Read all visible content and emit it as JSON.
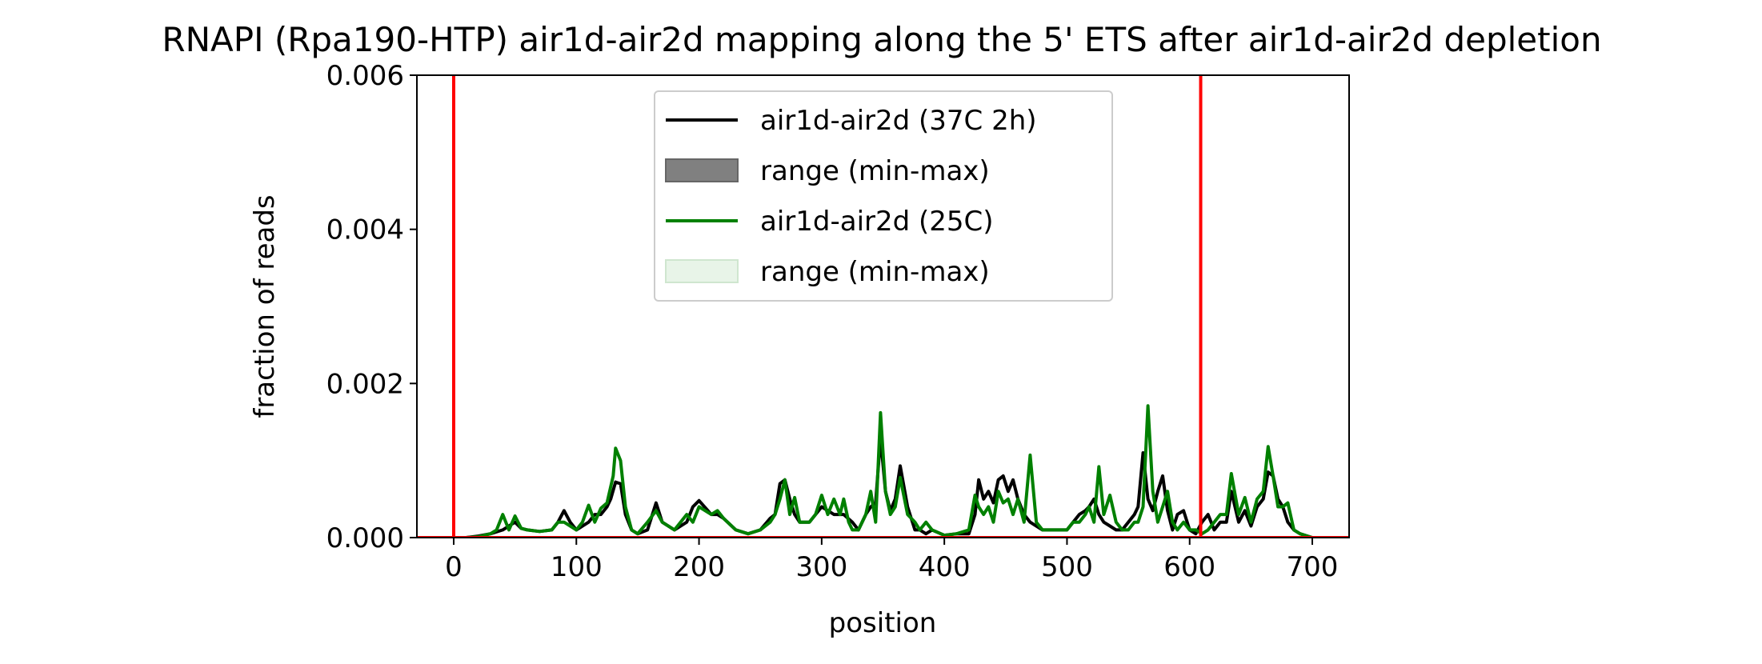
{
  "chart_data": {
    "type": "line",
    "title": "RNAPI (Rpa190-HTP) air1d-air2d mapping along the 5' ETS after air1d-air2d depletion",
    "xlabel": "position",
    "ylabel": "fraction of reads",
    "xlim": [
      -30,
      730
    ],
    "ylim": [
      0,
      0.006
    ],
    "xticks": [
      0,
      100,
      200,
      300,
      400,
      500,
      600,
      700
    ],
    "xtick_labels": [
      "0",
      "100",
      "200",
      "300",
      "400",
      "500",
      "600",
      "700"
    ],
    "yticks": [
      0.0,
      0.002,
      0.004,
      0.006
    ],
    "ytick_labels": [
      "0.000",
      "0.002",
      "0.004",
      "0.006"
    ],
    "grid": false,
    "legend_position": "top-center",
    "vlines": [
      {
        "x": 0,
        "color": "#ff0000"
      },
      {
        "x": 609,
        "color": "#ff0000"
      }
    ],
    "hline": {
      "y": 0,
      "color": "#ff0000"
    },
    "legend": [
      {
        "label": "air1d-air2d (37C 2h)",
        "kind": "line",
        "color": "#000000"
      },
      {
        "label": "range (min-max)",
        "kind": "patch",
        "color": "#808080"
      },
      {
        "label": "air1d-air2d (25C)",
        "kind": "line",
        "color": "#008000"
      },
      {
        "label": "range (min-max)",
        "kind": "patch",
        "color": "#e8f4e8"
      }
    ],
    "series": [
      {
        "name": "air1d-air2d (37C 2h)",
        "color": "#000000",
        "x": [
          0,
          10,
          20,
          30,
          40,
          45,
          50,
          55,
          60,
          70,
          80,
          85,
          90,
          95,
          100,
          110,
          115,
          120,
          125,
          128,
          132,
          136,
          140,
          145,
          150,
          158,
          165,
          170,
          180,
          190,
          195,
          200,
          210,
          215,
          220,
          230,
          240,
          250,
          258,
          262,
          266,
          270,
          274,
          278,
          282,
          290,
          295,
          300,
          305,
          310,
          318,
          325,
          330,
          336,
          340,
          344,
          348,
          352,
          356,
          360,
          364,
          370,
          376,
          380,
          385,
          390,
          400,
          410,
          420,
          425,
          428,
          432,
          436,
          440,
          444,
          448,
          452,
          456,
          460,
          465,
          470,
          480,
          490,
          500,
          505,
          510,
          515,
          518,
          522,
          526,
          530,
          535,
          540,
          545,
          550,
          555,
          558,
          562,
          566,
          570,
          574,
          578,
          582,
          586,
          590,
          595,
          600,
          605,
          610,
          615,
          620,
          625,
          630,
          634,
          640,
          645,
          650,
          655,
          660,
          664,
          668,
          672,
          676,
          680,
          685,
          690,
          700
        ],
        "y": [
          0,
          0,
          2e-05,
          5e-05,
          0.0001,
          0.00015,
          0.0002,
          0.00012,
          0.0001,
          8e-05,
          0.0001,
          0.0002,
          0.00035,
          0.0002,
          0.0001,
          0.0002,
          0.0003,
          0.0003,
          0.0004,
          0.0005,
          0.00072,
          0.0007,
          0.0003,
          0.0001,
          5e-05,
          0.0001,
          0.00045,
          0.0002,
          0.0001,
          0.0002,
          0.0004,
          0.00048,
          0.0003,
          0.0003,
          0.00025,
          0.0001,
          5e-05,
          0.0001,
          0.00025,
          0.0003,
          0.0007,
          0.00075,
          0.0005,
          0.0003,
          0.0002,
          0.0002,
          0.0003,
          0.0004,
          0.00035,
          0.0003,
          0.0003,
          0.0002,
          0.0001,
          0.0003,
          0.0004,
          0.00045,
          0.0013,
          0.0006,
          0.00035,
          0.0005,
          0.00093,
          0.0004,
          0.0001,
          0.0001,
          5e-05,
          0.0001,
          3e-05,
          5e-05,
          5e-05,
          0.0003,
          0.00075,
          0.0005,
          0.0006,
          0.00045,
          0.00075,
          0.0008,
          0.0006,
          0.00075,
          0.0005,
          0.0003,
          0.0002,
          0.0001,
          0.0001,
          0.0001,
          0.0002,
          0.0003,
          0.00035,
          0.0004,
          0.0005,
          0.0003,
          0.0002,
          0.00015,
          0.0001,
          0.0001,
          0.0002,
          0.0003,
          0.0004,
          0.0011,
          0.0005,
          0.00035,
          0.0006,
          0.0008,
          0.00035,
          0.0001,
          0.0003,
          0.00035,
          0.0001,
          5e-05,
          0.0002,
          0.0003,
          0.0001,
          0.0002,
          0.0002,
          0.0006,
          0.0002,
          0.00035,
          0.00015,
          0.0004,
          0.0005,
          0.00085,
          0.0008,
          0.0005,
          0.0004,
          0.0002,
          0.0001,
          5e-05,
          0.0
        ]
      },
      {
        "name": "air1d-air2d (25C)",
        "color": "#008000",
        "x": [
          0,
          10,
          20,
          30,
          35,
          40,
          45,
          50,
          55,
          60,
          70,
          80,
          85,
          90,
          95,
          100,
          105,
          110,
          115,
          120,
          125,
          130,
          132,
          136,
          140,
          145,
          150,
          158,
          165,
          170,
          180,
          190,
          195,
          200,
          210,
          215,
          220,
          230,
          240,
          250,
          258,
          262,
          266,
          270,
          274,
          278,
          282,
          290,
          295,
          300,
          305,
          310,
          315,
          318,
          322,
          325,
          330,
          336,
          340,
          344,
          348,
          352,
          356,
          360,
          364,
          370,
          376,
          380,
          385,
          390,
          400,
          410,
          420,
          425,
          428,
          432,
          436,
          440,
          444,
          448,
          452,
          456,
          460,
          465,
          470,
          475,
          480,
          490,
          500,
          505,
          510,
          515,
          518,
          522,
          526,
          530,
          535,
          540,
          545,
          550,
          555,
          558,
          562,
          566,
          570,
          574,
          578,
          582,
          586,
          590,
          595,
          600,
          605,
          610,
          615,
          620,
          625,
          630,
          634,
          640,
          645,
          650,
          655,
          660,
          664,
          668,
          672,
          676,
          680,
          685,
          690,
          700
        ],
        "y": [
          0,
          0,
          1e-05,
          5e-05,
          0.0001,
          0.0003,
          0.0001,
          0.00028,
          0.00012,
          0.0001,
          8e-05,
          0.0001,
          0.0002,
          0.0002,
          0.00015,
          0.0001,
          0.0002,
          0.00042,
          0.0002,
          0.00038,
          0.00045,
          0.0008,
          0.00116,
          0.001,
          0.0004,
          0.0001,
          5e-05,
          0.0002,
          0.00035,
          0.0002,
          0.0001,
          0.0003,
          0.0002,
          0.0004,
          0.0003,
          0.00035,
          0.00025,
          0.0001,
          5e-05,
          0.0001,
          0.0002,
          0.0003,
          0.0005,
          0.00075,
          0.0003,
          0.00052,
          0.0002,
          0.0002,
          0.0003,
          0.00055,
          0.0003,
          0.0005,
          0.0003,
          0.0005,
          0.0002,
          0.0001,
          0.0001,
          0.0003,
          0.0006,
          0.0002,
          0.00162,
          0.0006,
          0.0003,
          0.0004,
          0.00078,
          0.0003,
          0.0002,
          0.0001,
          0.0002,
          0.0001,
          3e-05,
          5e-05,
          0.0001,
          0.00055,
          0.0004,
          0.0003,
          0.0004,
          0.0002,
          0.0006,
          0.00045,
          0.0005,
          0.0003,
          0.0005,
          0.0002,
          0.00107,
          0.0002,
          0.0001,
          0.0001,
          0.0001,
          0.0002,
          0.0002,
          0.0003,
          0.0004,
          0.0002,
          0.00092,
          0.0003,
          0.00055,
          0.0002,
          0.0001,
          0.0001,
          0.0002,
          0.0002,
          0.0004,
          0.00171,
          0.0006,
          0.0002,
          0.0004,
          0.0006,
          0.0002,
          0.0001,
          0.0002,
          0.0001,
          0.0001,
          5e-05,
          0.0001,
          0.0002,
          0.0003,
          0.0003,
          0.00083,
          0.0003,
          0.00052,
          0.0002,
          0.0005,
          0.0006,
          0.00118,
          0.0008,
          0.0004,
          0.0004,
          0.00045,
          0.0001,
          5e-05,
          0.0
        ]
      }
    ]
  }
}
